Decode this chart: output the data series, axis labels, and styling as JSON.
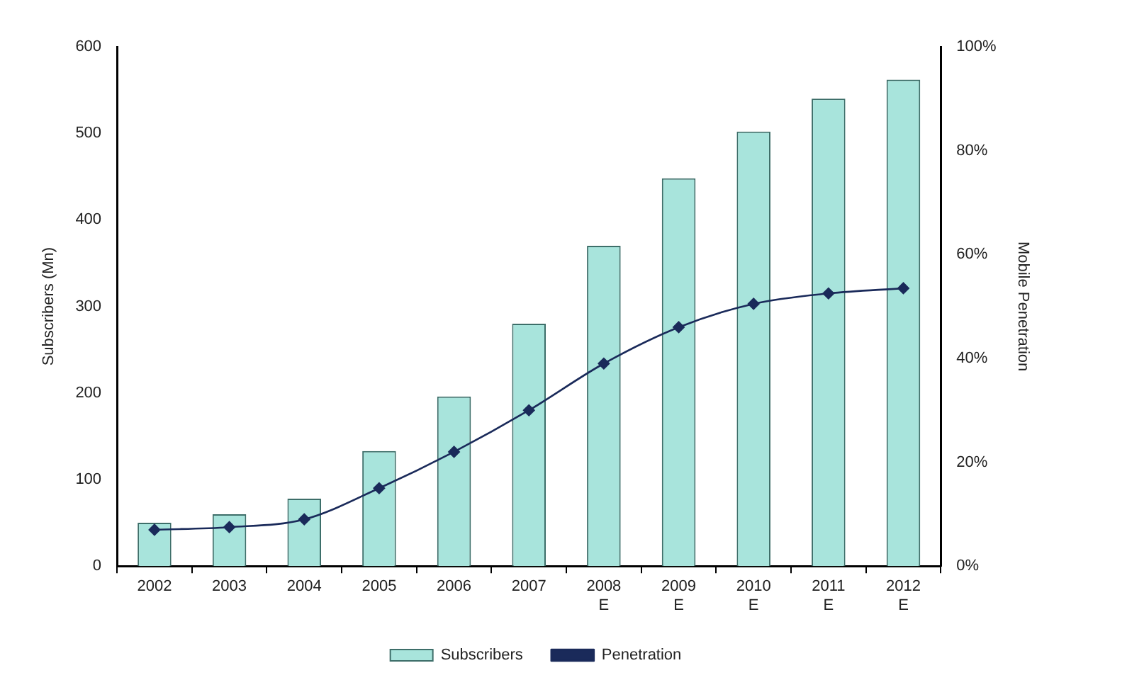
{
  "chart_data": {
    "type": "bar",
    "categories": [
      "2002",
      "2003",
      "2004",
      "2005",
      "2006",
      "2007",
      "2008\nE",
      "2009\nE",
      "2010\nE",
      "2011\nE",
      "2012\nE"
    ],
    "series": [
      {
        "name": "Subscribers",
        "color": "#a8e4dc",
        "values": [
          50,
          60,
          78,
          133,
          196,
          280,
          370,
          448,
          502,
          540,
          562
        ]
      },
      {
        "name": "Penetration",
        "type": "line",
        "axis": "y2",
        "color": "#1a2a5a",
        "marker": "diamond",
        "values": [
          7,
          7.5,
          9,
          15,
          22,
          30,
          39,
          46,
          50.5,
          52.5,
          53.5
        ]
      }
    ],
    "ylabel": "Subscribers (Mn)",
    "y2label": "Mobile Penetration",
    "ylim": [
      0,
      600
    ],
    "yticks": [
      0,
      100,
      200,
      300,
      400,
      500,
      600
    ],
    "y2lim": [
      0,
      100
    ],
    "y2ticks": [
      {
        "value": 0,
        "label": "0%"
      },
      {
        "value": 20,
        "label": "20%"
      },
      {
        "value": 40,
        "label": "40%"
      },
      {
        "value": 60,
        "label": "60%"
      },
      {
        "value": 80,
        "label": "80%"
      },
      {
        "value": 100,
        "label": "100%"
      }
    ],
    "grid": false,
    "legend": "bottom"
  }
}
